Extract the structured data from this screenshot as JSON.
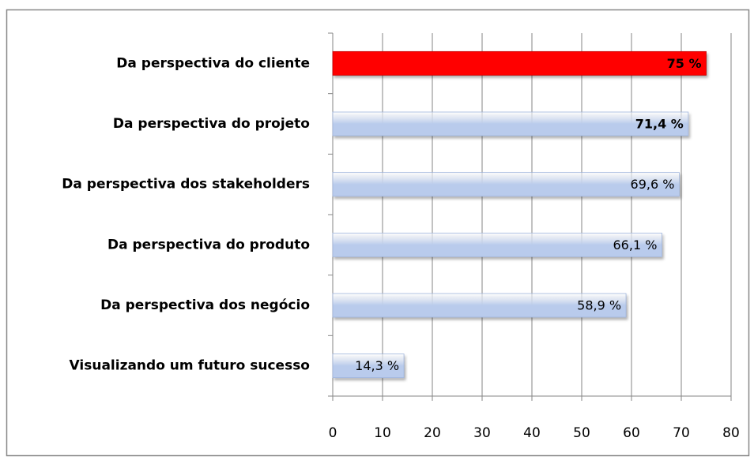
{
  "chart_data": {
    "type": "bar",
    "orientation": "horizontal",
    "categories": [
      "Da perspectiva do cliente",
      "Da perspectiva do projeto",
      "Da perspectiva dos stakeholders",
      "Da perspectiva do produto",
      "Da perspectiva dos negócio",
      "Visualizando um futuro sucesso"
    ],
    "values": [
      75,
      71.4,
      69.6,
      66.1,
      58.9,
      14.3
    ],
    "value_labels": [
      "75 %",
      "71,4 %",
      "69,6 %",
      "66,1 %",
      "58,9 %",
      "14,3 %"
    ],
    "value_label_bold": [
      true,
      true,
      false,
      false,
      false,
      false
    ],
    "colors": [
      "#ff0000",
      "#b9cbec",
      "#b9cbec",
      "#b9cbec",
      "#b9cbec",
      "#b9cbec"
    ],
    "xlim": [
      0,
      80
    ],
    "xticks": [
      0,
      10,
      20,
      30,
      40,
      50,
      60,
      70,
      80
    ],
    "grid": true
  }
}
